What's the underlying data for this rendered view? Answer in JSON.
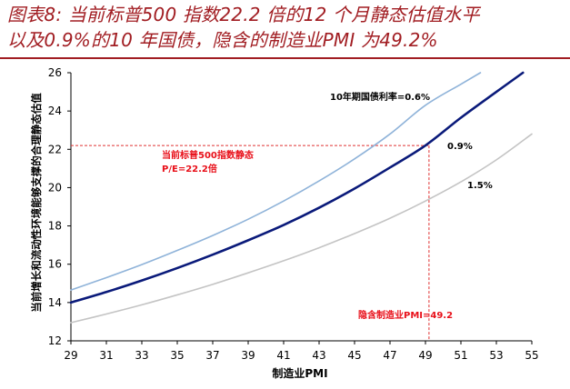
{
  "title": {
    "line1": "图表8: 当前标普500 指数22.2 倍的12 个月静态估值水平",
    "line2": "以及0.9%的10 年国债，隐含的制造业PMI 为49.2%"
  },
  "colors": {
    "title": "#a11d22",
    "series_low": "#8fb3d9",
    "series_mid": "#0a1a7a",
    "series_high": "#c4c4c4",
    "reference": "#e03030",
    "annotation": "#e8101a"
  },
  "chart_data": {
    "type": "line",
    "xlabel": "制造业PMI",
    "ylabel": "当前增长和流动性环境能够支撑的合理静态估值",
    "xlim": [
      29,
      55
    ],
    "ylim": [
      12,
      26
    ],
    "xticks": [
      "29",
      "31",
      "33",
      "35",
      "37",
      "39",
      "41",
      "43",
      "45",
      "47",
      "49",
      "51",
      "53",
      "55"
    ],
    "yticks": [
      "12",
      "14",
      "16",
      "18",
      "20",
      "22",
      "24",
      "26"
    ],
    "grid": false,
    "series": [
      {
        "name": "10年期国债利率=0.6%",
        "x": [
          29,
          31,
          33,
          35,
          37,
          39,
          41,
          43,
          45,
          47,
          49,
          51,
          52.1
        ],
        "y": [
          14.65,
          15.3,
          15.98,
          16.72,
          17.5,
          18.35,
          19.3,
          20.35,
          21.5,
          22.8,
          24.3,
          25.4,
          26.0
        ]
      },
      {
        "name": "0.9%",
        "x": [
          29,
          31,
          33,
          35,
          37,
          39,
          41,
          43,
          45,
          47,
          49,
          51,
          53,
          54.5
        ],
        "y": [
          14.0,
          14.55,
          15.15,
          15.8,
          16.5,
          17.25,
          18.05,
          18.95,
          19.95,
          21.05,
          22.2,
          23.65,
          25.0,
          26.0
        ]
      },
      {
        "name": "1.5%",
        "x": [
          29,
          31,
          33,
          35,
          37,
          39,
          41,
          43,
          45,
          47,
          49,
          51,
          53,
          55
        ],
        "y": [
          12.95,
          13.4,
          13.88,
          14.4,
          14.95,
          15.55,
          16.18,
          16.86,
          17.6,
          18.4,
          19.3,
          20.3,
          21.45,
          22.8
        ]
      }
    ],
    "reference": {
      "pe": 22.2,
      "pmi": 49.2
    },
    "annotations": {
      "series_low": "10年期国债利率=0.6%",
      "series_mid": "0.9%",
      "series_high": "1.5%",
      "pe_line1": "当前标普500指数静态",
      "pe_line2": "P/E=22.2倍",
      "pmi": "隐含制造业PMI=49.2"
    }
  }
}
